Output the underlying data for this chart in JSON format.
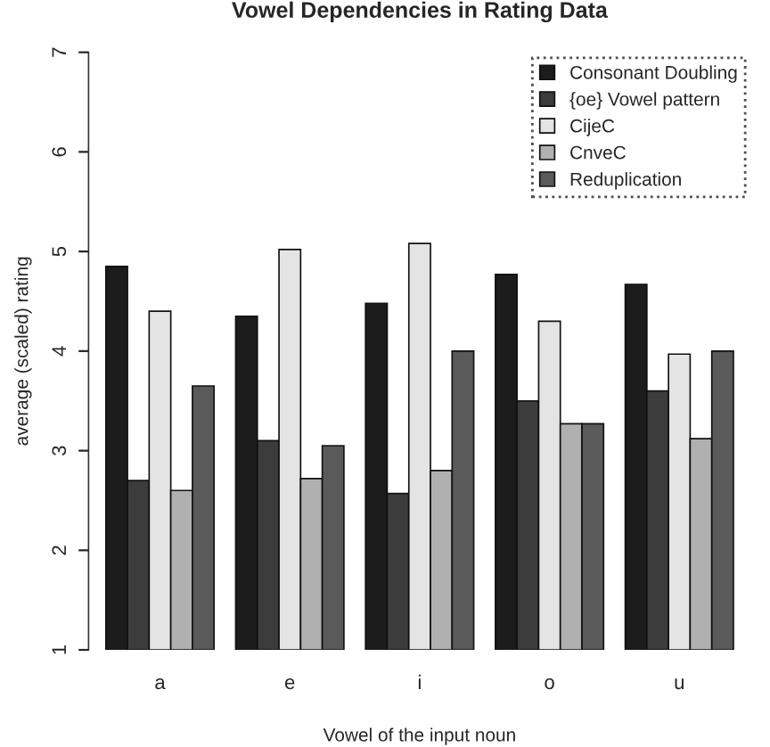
{
  "chart_data": {
    "type": "bar",
    "title": "Vowel Dependencies in Rating Data",
    "xlabel": "Vowel of the input noun",
    "ylabel": "average (scaled) rating",
    "categories": [
      "a",
      "e",
      "i",
      "o",
      "u"
    ],
    "series": [
      {
        "name": "Consonant Doubling",
        "color": "#1c1c1c",
        "values": [
          4.85,
          4.35,
          4.48,
          4.77,
          4.67
        ]
      },
      {
        "name": "{oe} Vowel pattern",
        "color": "#3c3c3c",
        "values": [
          2.7,
          3.1,
          2.57,
          3.5,
          3.6
        ]
      },
      {
        "name": "CijeC",
        "color": "#e4e4e4",
        "values": [
          4.4,
          5.02,
          5.08,
          4.3,
          3.97
        ]
      },
      {
        "name": "CnveC",
        "color": "#b0b0b0",
        "values": [
          2.6,
          2.72,
          2.8,
          3.27,
          3.12
        ]
      },
      {
        "name": "Reduplication",
        "color": "#5a5a5a",
        "values": [
          3.65,
          3.05,
          4.0,
          3.27,
          4.0
        ]
      }
    ],
    "ylim": [
      1,
      7
    ],
    "yticks": [
      1,
      2,
      3,
      4,
      5,
      6,
      7
    ],
    "grid": false,
    "legend": "top right"
  }
}
